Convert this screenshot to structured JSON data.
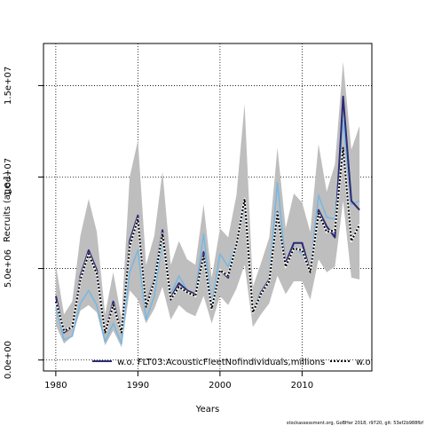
{
  "chart_data": {
    "type": "line",
    "xlabel": "Years",
    "ylabel": "Recruits (age 1)",
    "xlim": [
      1978.5,
      2018.5
    ],
    "ylim": [
      -600000,
      17300000
    ],
    "x_ticks": [
      1980,
      1990,
      2000,
      2010
    ],
    "x_tick_labels": [
      "1980",
      "1990",
      "2000",
      "2010"
    ],
    "y_ticks": [
      0,
      5000000,
      10000000,
      15000000
    ],
    "y_tick_labels": [
      "0.0e+00",
      "5.0e+06",
      "1.0e+07",
      "1.5e+07"
    ],
    "grid": true,
    "x": [
      1980,
      1981,
      1982,
      1983,
      1984,
      1985,
      1986,
      1987,
      1988,
      1989,
      1990,
      1991,
      1992,
      1993,
      1994,
      1995,
      1996,
      1997,
      1998,
      1999,
      2000,
      2001,
      2002,
      2003,
      2004,
      2005,
      2006,
      2007,
      2008,
      2009,
      2010,
      2011,
      2012,
      2013,
      2014,
      2015,
      2016,
      2017
    ],
    "band": {
      "color": "#bebebe",
      "upper": [
        5200000,
        2500000,
        3200000,
        6800000,
        8800000,
        7000000,
        2500000,
        4800000,
        2300000,
        10000000,
        12000000,
        5200000,
        6800000,
        10300000,
        5200000,
        6500000,
        5500000,
        5200000,
        8500000,
        4500000,
        7200000,
        6700000,
        9000000,
        14000000,
        4000000,
        5300000,
        6700000,
        11600000,
        7200000,
        9100000,
        8600000,
        7000000,
        11800000,
        9200000,
        10700000,
        16300000,
        11500000,
        12800000
      ],
      "lower": [
        1900000,
        900000,
        1300000,
        2700000,
        3000000,
        2600000,
        800000,
        1600000,
        700000,
        3800000,
        3300000,
        2000000,
        2800000,
        4000000,
        2200000,
        3000000,
        2600000,
        2400000,
        3500000,
        2000000,
        3500000,
        3000000,
        3900000,
        5200000,
        1800000,
        2500000,
        3100000,
        4600000,
        3600000,
        4300000,
        4300000,
        3300000,
        5500000,
        4800000,
        5100000,
        8700000,
        4500000,
        4400000
      ]
    },
    "series": [
      {
        "name": "w.o. FLT03:AcousticFleetNofindividuals,millions",
        "color": "#2c2a74",
        "dash": "solid",
        "values": [
          3500000,
          1500000,
          1800000,
          4600000,
          6000000,
          4900000,
          1500000,
          3200000,
          1500000,
          6500000,
          7900000,
          3000000,
          4400000,
          7100000,
          3400000,
          4200000,
          3800000,
          3600000,
          5900000,
          2800000,
          4900000,
          4500000,
          6300000,
          8700000,
          2600000,
          3700000,
          4400000,
          8100000,
          5300000,
          6400000,
          6400000,
          4800000,
          8200000,
          7300000,
          6700000,
          14400000,
          8700000,
          8200000
        ]
      },
      {
        "name": "w.o.",
        "color": "#000000",
        "dash": "dotted",
        "values": [
          3200000,
          1600000,
          1800000,
          4400000,
          5800000,
          4700000,
          1500000,
          3000000,
          1500000,
          6200000,
          7700000,
          2900000,
          4300000,
          6900000,
          3300000,
          4000000,
          3700000,
          3500000,
          5700000,
          2800000,
          4900000,
          4600000,
          6300000,
          8800000,
          2600000,
          3600000,
          4300000,
          8000000,
          5100000,
          6100000,
          6000000,
          4800000,
          8000000,
          7000000,
          7100000,
          11600000,
          6500000,
          7400000
        ]
      },
      {
        "name": "",
        "color": "#79b8e2",
        "dash": "solid",
        "values": [
          2900000,
          1100000,
          1300000,
          3100000,
          3800000,
          3000000,
          1000000,
          2000000,
          900000,
          4800000,
          6000000,
          2200000,
          3500000,
          6600000,
          3600000,
          4600000,
          3800000,
          3600000,
          6900000,
          3000000,
          5800000,
          5100000,
          6400000,
          8500000,
          2600000,
          3500000,
          4500000,
          9700000,
          5200000,
          6200000,
          5800000,
          5000000,
          9000000,
          7800000,
          7700000,
          13100000,
          8500000,
          8700000
        ]
      }
    ],
    "legend": {
      "placement": "bottom",
      "entries": [
        "w.o. FLT03:AcousticFleetNofindividuals,millions",
        "w.o."
      ]
    }
  },
  "footer": "stockassessment.org, GoBHer 2018, r9720, git: 53ef2b988fbf"
}
